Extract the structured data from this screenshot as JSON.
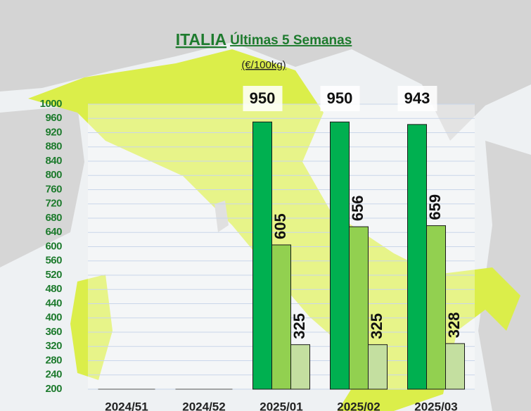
{
  "chart_data": {
    "type": "bar",
    "title": [
      "ITALIA",
      "Últimas 5 Semanas"
    ],
    "subtitle": "(€/100kg)",
    "categories": [
      "2024/51",
      "2024/52",
      "2025/01",
      "2025/02",
      "2025/03"
    ],
    "series": [
      {
        "color": "#00b050",
        "values": [
          null,
          null,
          950,
          950,
          943
        ]
      },
      {
        "color": "#92d050",
        "values": [
          null,
          null,
          605,
          656,
          659
        ]
      },
      {
        "color": "#c4dfa0",
        "values": [
          null,
          null,
          325,
          325,
          328
        ]
      }
    ],
    "ylim": [
      200,
      1000
    ],
    "yticks": [
      200,
      240,
      280,
      320,
      360,
      400,
      440,
      480,
      520,
      560,
      600,
      640,
      680,
      720,
      760,
      800,
      840,
      880,
      920,
      960,
      1000
    ],
    "grid": true
  }
}
